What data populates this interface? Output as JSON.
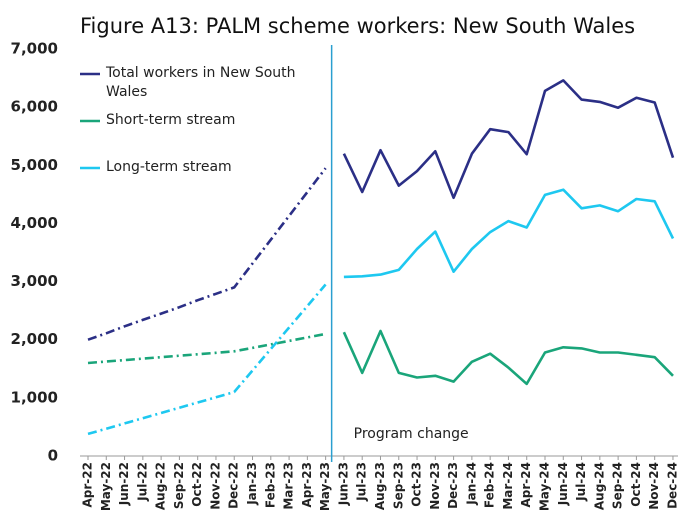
{
  "chart_data": {
    "type": "line",
    "title": "Figure A13: PALM scheme workers: New South Wales",
    "categories": [
      "Apr-22",
      "May-22",
      "Jun-22",
      "Jul-22",
      "Aug-22",
      "Sep-22",
      "Oct-22",
      "Nov-22",
      "Dec-22",
      "Jan-23",
      "Feb-23",
      "Mar-23",
      "Apr-23",
      "May-23",
      "Jun-23",
      "Jul-23",
      "Aug-23",
      "Sep-23",
      "Oct-23",
      "Nov-23",
      "Dec-23",
      "Jan-24",
      "Feb-24",
      "Mar-24",
      "Apr-24",
      "May-24",
      "Jun-24",
      "Jul-24",
      "Aug-24",
      "Sep-24",
      "Oct-24",
      "Nov-24",
      "Dec-24"
    ],
    "series": [
      {
        "name": "Total workers in New South Wales",
        "color": "#2b2f86",
        "values": [
          2000,
          2110,
          2230,
          2340,
          2450,
          2560,
          2680,
          2790,
          2900,
          3310,
          3720,
          4130,
          4540,
          4950,
          5200,
          4540,
          5260,
          4650,
          4900,
          5240,
          4440,
          5200,
          5620,
          5570,
          5190,
          6280,
          6460,
          6130,
          6090,
          5990,
          6160,
          6080,
          5130
        ]
      },
      {
        "name": "Short-term stream",
        "color": "#1aa57a",
        "values": [
          1600,
          1625,
          1650,
          1675,
          1700,
          1725,
          1750,
          1775,
          1800,
          1860,
          1920,
          1980,
          2040,
          2100,
          2130,
          1430,
          2150,
          1430,
          1350,
          1380,
          1280,
          1620,
          1760,
          1520,
          1240,
          1780,
          1870,
          1850,
          1780,
          1780,
          1740,
          1700,
          1380
        ]
      },
      {
        "name": "Long-term stream",
        "color": "#1ec8f0",
        "values": [
          380,
          470,
          560,
          650,
          740,
          830,
          920,
          1010,
          1100,
          1470,
          1840,
          2210,
          2580,
          2950,
          3080,
          3090,
          3120,
          3200,
          3560,
          3860,
          3170,
          3560,
          3850,
          4040,
          3930,
          4490,
          4580,
          4260,
          4310,
          4210,
          4420,
          4380,
          3740
        ]
      }
    ],
    "dashed_through": "May-23",
    "annotation": {
      "text": "Program change",
      "x": "May-23",
      "color": "#2a9fd0"
    },
    "ylim": [
      0,
      7000
    ],
    "yticks": [
      {
        "value": 0,
        "label": "0"
      },
      {
        "value": 1000,
        "label": "1,000"
      },
      {
        "value": 2000,
        "label": "2,000"
      },
      {
        "value": 3000,
        "label": "3,000"
      },
      {
        "value": 4000,
        "label": "4,000"
      },
      {
        "value": 5000,
        "label": "5,000"
      },
      {
        "value": 6000,
        "label": "6,000"
      },
      {
        "value": 7000,
        "label": "7,000"
      }
    ],
    "grid": false,
    "legend": "top-left"
  }
}
